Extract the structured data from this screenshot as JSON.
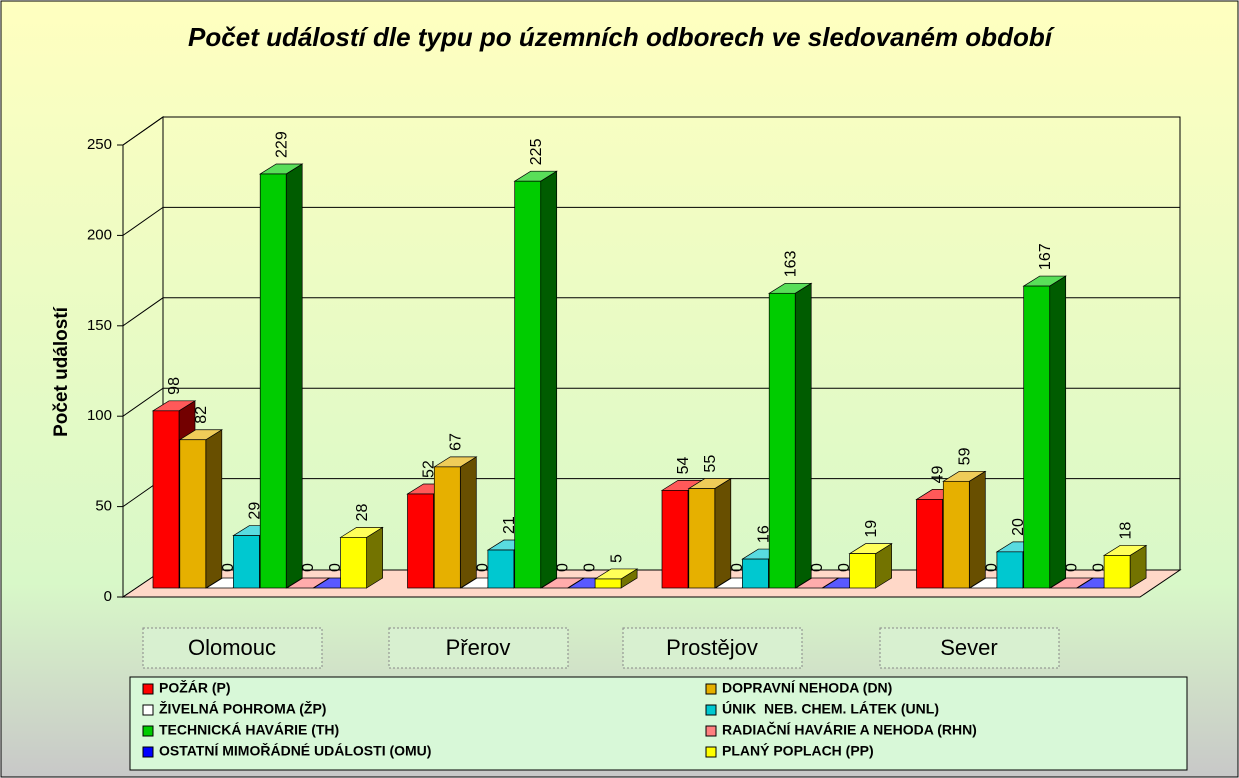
{
  "chart_data": {
    "type": "bar3d",
    "title": "Počet událostí dle typu po územních odborech ve sledovaném období",
    "y_label": "Počet událostí",
    "categories": [
      "Olomouc",
      "Přerov",
      "Prostějov",
      "Sever"
    ],
    "series": [
      {
        "name": "POŽÁR (P)",
        "color": "#ff0000",
        "values": [
          98,
          52,
          54,
          49
        ]
      },
      {
        "name": "DOPRAVNÍ NEHODA (DN)",
        "color": "#e6b000",
        "values": [
          82,
          67,
          55,
          59
        ]
      },
      {
        "name": "ŽIVELNÁ POHROMA (ŽP)",
        "color": "#ffffff",
        "values": [
          0,
          0,
          0,
          0
        ]
      },
      {
        "name": "ÚNIK  NEB. CHEM. LÁTEK (UNL)",
        "color": "#00c8d0",
        "values": [
          29,
          21,
          16,
          20
        ]
      },
      {
        "name": "TECHNICKÁ HAVÁRIE (TH)",
        "color": "#00cc00",
        "values": [
          229,
          225,
          163,
          167
        ]
      },
      {
        "name": "RADIAČNÍ HAVÁRIE A NEHODA (RHN)",
        "color": "#ff8080",
        "values": [
          0,
          0,
          0,
          0
        ]
      },
      {
        "name": "OSTATNÍ MIMOŘÁDNÉ UDÁLOSTI (OMU)",
        "color": "#0000ff",
        "values": [
          0,
          0,
          0,
          0
        ]
      },
      {
        "name": "PLANÝ POPLACH (PP)",
        "color": "#ffff00",
        "values": [
          28,
          5,
          19,
          18
        ]
      }
    ],
    "ylim": [
      0,
      250
    ],
    "yticks": [
      0,
      50,
      100,
      150,
      200,
      250
    ],
    "grid": true,
    "legend": "bottom"
  }
}
